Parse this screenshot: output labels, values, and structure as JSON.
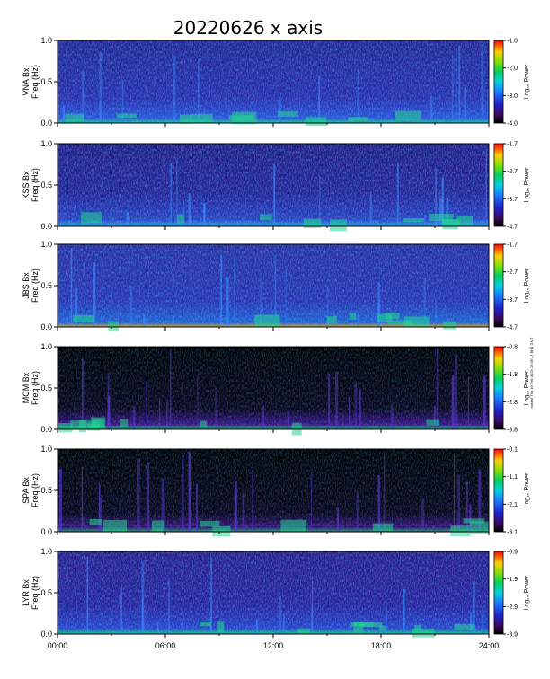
{
  "figure": {
    "title": "20220626 x axis",
    "side_note": "mlst-vt Thu 16 Feb 2023 16:06:17 BHT GMT",
    "x_ticks": [
      "00:00",
      "06:00",
      "12:00",
      "18:00",
      "24:00"
    ],
    "freq_ticks": [
      "1.0",
      "0.5",
      "0.0"
    ]
  },
  "chart_data": [
    {
      "type": "heatmap",
      "station": "VNA",
      "ylabel_line1": "VNA Bx",
      "ylabel_line2": "Freq (Hz)",
      "xlim": [
        0,
        24
      ],
      "ylim": [
        0,
        1
      ],
      "colorbar_label": "Log₁₀ Power",
      "colorbar_ticks": [
        "-1.0",
        "-2.0",
        "-3.0",
        "-4.0"
      ],
      "crange": [
        -4.0,
        -1.0
      ]
    },
    {
      "type": "heatmap",
      "station": "KSS",
      "ylabel_line1": "KSS Bx",
      "ylabel_line2": "Freq (Hz)",
      "xlim": [
        0,
        24
      ],
      "ylim": [
        0,
        1
      ],
      "colorbar_label": "Log₁₀ Power",
      "colorbar_ticks": [
        "-1.7",
        "-2.7",
        "-3.7",
        "-4.7"
      ],
      "crange": [
        -4.7,
        -1.7
      ]
    },
    {
      "type": "heatmap",
      "station": "JBS",
      "ylabel_line1": "JBS Bx",
      "ylabel_line2": "Freq (Hz)",
      "xlim": [
        0,
        24
      ],
      "ylim": [
        0,
        1
      ],
      "colorbar_label": "Log₁₀ Power",
      "colorbar_ticks": [
        "-1.7",
        "-2.7",
        "-3.7",
        "-4.7"
      ],
      "crange": [
        -4.7,
        -1.7
      ]
    },
    {
      "type": "heatmap",
      "station": "MCM",
      "ylabel_line1": "MCM Bx",
      "ylabel_line2": "Freq (Hz)",
      "xlim": [
        0,
        24
      ],
      "ylim": [
        0,
        1
      ],
      "colorbar_label": "Log₁₀ Power",
      "colorbar_ticks": [
        "-0.8",
        "-1.8",
        "-2.8",
        "-3.8"
      ],
      "crange": [
        -3.8,
        -0.8
      ]
    },
    {
      "type": "heatmap",
      "station": "SPA",
      "ylabel_line1": "SPA Bx",
      "ylabel_line2": "Freq (Hz)",
      "xlim": [
        0,
        24
      ],
      "ylim": [
        0,
        1
      ],
      "colorbar_label": "Log₁₀ Power",
      "colorbar_ticks": [
        "-0.1",
        "-1.1",
        "-2.1",
        "-3.1"
      ],
      "crange": [
        -3.1,
        -0.1
      ]
    },
    {
      "type": "heatmap",
      "station": "LYR",
      "ylabel_line1": "LYR Bx",
      "ylabel_line2": "Freq (Hz)",
      "xlim": [
        0,
        24
      ],
      "ylim": [
        0,
        1
      ],
      "colorbar_label": "Log₁₀ Power",
      "colorbar_ticks": [
        "-0.9",
        "-1.9",
        "-2.9",
        "-3.9"
      ],
      "crange": [
        -3.9,
        -0.9
      ]
    }
  ]
}
